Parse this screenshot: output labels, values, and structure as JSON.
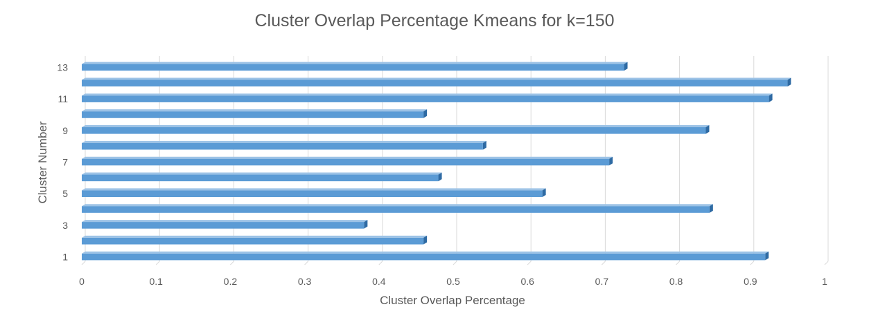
{
  "chart_data": {
    "type": "bar",
    "orientation": "horizontal",
    "title": "Cluster Overlap Percentage Kmeans for k=150",
    "xlabel": "Cluster Overlap Percentage",
    "ylabel": "Cluster Number",
    "xlim": [
      0,
      1
    ],
    "x_ticks": [
      "0",
      "0.1",
      "0.2",
      "0.3",
      "0.4",
      "0.5",
      "0.6",
      "0.7",
      "0.8",
      "0.9",
      "1"
    ],
    "categories": [
      "1",
      "2",
      "3",
      "4",
      "5",
      "6",
      "7",
      "8",
      "9",
      "10",
      "11",
      "12",
      "13"
    ],
    "y_tick_labels": [
      "1",
      "",
      "3",
      "",
      "5",
      "",
      "7",
      "",
      "9",
      "",
      "11",
      "",
      "13"
    ],
    "values": [
      0.92,
      0.46,
      0.38,
      0.845,
      0.62,
      0.48,
      0.71,
      0.54,
      0.84,
      0.46,
      0.925,
      0.95,
      0.73
    ],
    "grid": true,
    "legend": "none",
    "bar_color": "#5b9bd5"
  }
}
